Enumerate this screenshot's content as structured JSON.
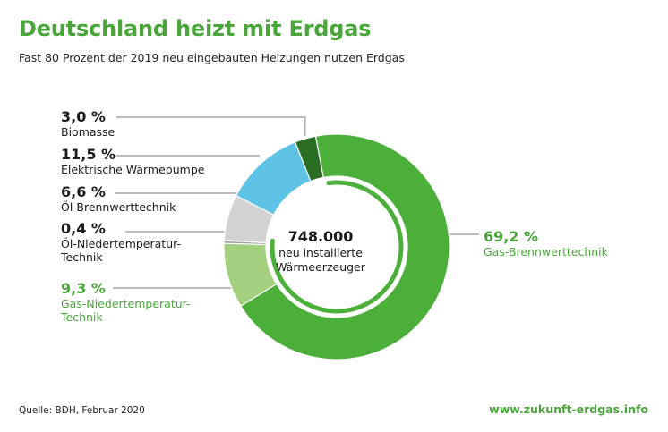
{
  "header": {
    "title": "Deutschland heizt mit Erdgas",
    "subtitle": "Fast 80 Prozent der 2019 neu eingebauten Heizungen nutzen Erdgas"
  },
  "center": {
    "total": "748.000",
    "line1": "neu installierte",
    "line2": "Wärmeerzeuger"
  },
  "footer": {
    "source": "Quelle: BDH, Februar 2020",
    "url": "www.zukunft-erdgas.info"
  },
  "chart_data": {
    "type": "pie",
    "categories": [
      "Gas-Brennwerttechnik",
      "Gas-Niedertemperatur-Technik",
      "Öl-Niedertemperatur-Technik",
      "Öl-Brennwerttechnik",
      "Elektrische Wärmepumpe",
      "Biomasse"
    ],
    "values": [
      69.2,
      9.3,
      0.4,
      6.6,
      11.5,
      3.0
    ],
    "value_labels": [
      "69,2 %",
      "9,3 %",
      "0,4 %",
      "6,6 %",
      "11,5 %",
      "3,0 %"
    ],
    "label_lines": [
      [
        "Gas-Brennwerttechnik"
      ],
      [
        "Gas-Niedertemperatur-",
        "Technik"
      ],
      [
        "Öl-Niedertemperatur-",
        "Technik"
      ],
      [
        "Öl-Brennwerttechnik"
      ],
      [
        "Elektrische Wärmepumpe"
      ],
      [
        "Biomasse"
      ]
    ],
    "colors": [
      "#4caf3a",
      "#a3cf7e",
      "#9e9e9e",
      "#d2d2d2",
      "#5ec3e4",
      "#2a6e24"
    ],
    "title": "Deutschland heizt mit Erdgas",
    "legend": "none"
  }
}
